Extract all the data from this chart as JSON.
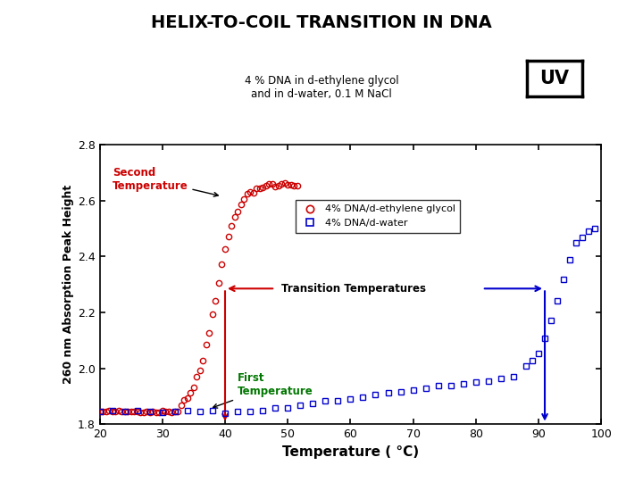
{
  "title": "HELIX-TO-COIL TRANSITION IN DNA",
  "uv_label": "UV",
  "subtitle1": "4 % DNA in d-ethylene glycol",
  "subtitle2": "and in d-water, 0.1 M NaCl",
  "xlabel": "Temperature ( °C)",
  "ylabel": "260 nm Absorption Peak Height",
  "xlim": [
    20,
    100
  ],
  "ylim": [
    1.8,
    2.8
  ],
  "xticks": [
    20,
    30,
    40,
    50,
    60,
    70,
    80,
    90,
    100
  ],
  "yticks": [
    1.8,
    2.0,
    2.2,
    2.4,
    2.6,
    2.8
  ],
  "legend_red": "4% DNA/d-ethylene glycol",
  "legend_blue": "4% DNA/d-water",
  "red_color": "#CC0000",
  "blue_color": "#0000CC",
  "green_color": "#007700",
  "black_color": "#000000",
  "annotation_second_temp": "Second\nTemperature",
  "annotation_first_temp": "First\nTemperature",
  "annotation_transition": "Transition Temperatures",
  "transition_red_x": 40,
  "transition_blue_x": 91,
  "transition_y": 2.285
}
